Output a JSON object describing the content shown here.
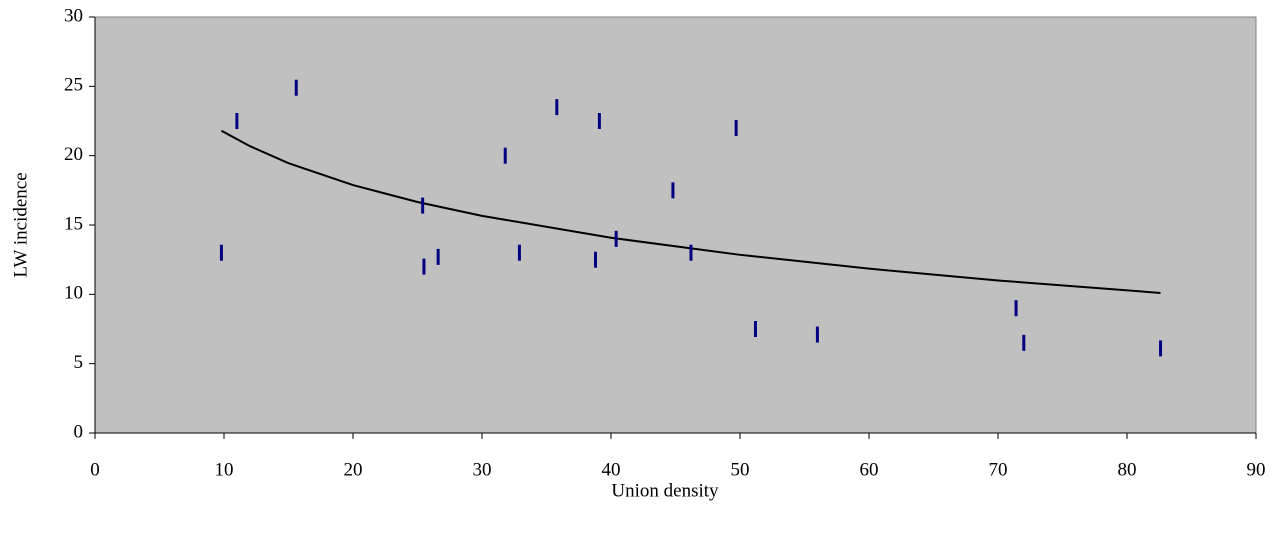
{
  "chart_data": {
    "type": "scatter",
    "x_label": "Union density",
    "y_label": "LW incidence",
    "xlim": [
      0,
      90
    ],
    "xticks": [
      0,
      10,
      20,
      30,
      40,
      50,
      60,
      70,
      80,
      90
    ],
    "ylim": [
      0,
      30
    ],
    "yticks": [
      0,
      5,
      10,
      15,
      20,
      25,
      30
    ],
    "background": "#c0c0c0",
    "series": [
      {
        "color": "#000080",
        "marker": "dash",
        "x": [
          9.8,
          11.0,
          15.6,
          25.4,
          25.5,
          26.6,
          31.8,
          32.9,
          35.8,
          38.8,
          39.1,
          40.4,
          44.8,
          46.2,
          49.7,
          51.2,
          56.0,
          71.4,
          72.0,
          82.6
        ],
        "values": [
          13.0,
          22.5,
          24.9,
          16.4,
          12.0,
          12.7,
          20.0,
          13.0,
          23.5,
          12.5,
          22.5,
          14.0,
          17.5,
          13.0,
          22.0,
          7.5,
          7.1,
          9.0,
          6.5,
          6.1
        ]
      }
    ],
    "trendline": {
      "color": "#000000",
      "x": [
        9.8,
        12,
        15,
        20,
        25,
        30,
        40,
        50,
        60,
        70,
        82.6
      ],
      "values": [
        21.8,
        20.69,
        19.46,
        17.88,
        16.66,
        15.66,
        14.08,
        12.85,
        11.85,
        11.0,
        10.1
      ]
    }
  }
}
